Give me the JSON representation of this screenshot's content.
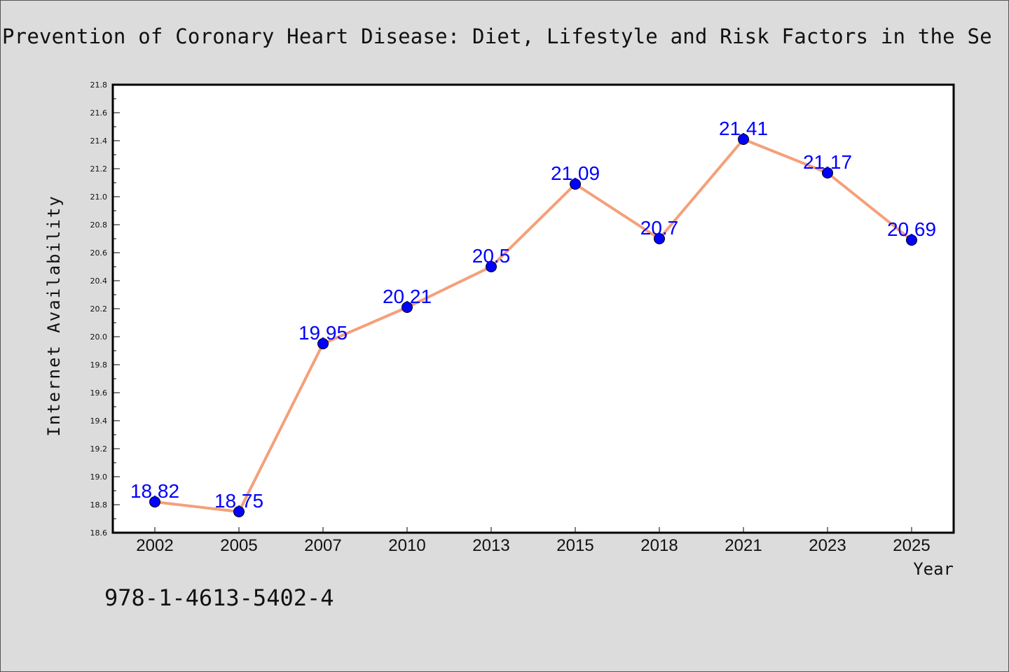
{
  "page": {
    "title": "Prevention of Coronary Heart Disease: Diet, Lifestyle and Risk Factors in the Se",
    "isbn": "978-1-4613-5402-4"
  },
  "colors": {
    "line": "#f4a07a",
    "marker": "#0000ff",
    "label": "#0000ff",
    "plot_bg": "#ffffff",
    "page_bg": "#dcdcdc"
  },
  "chart_data": {
    "type": "line",
    "title": "Prevention of Coronary Heart Disease: Diet, Lifestyle and Risk Factors in the Se",
    "xlabel": "Year",
    "ylabel": "Internet Availability",
    "categories": [
      "2002",
      "2005",
      "2007",
      "2010",
      "2013",
      "2015",
      "2018",
      "2021",
      "2023",
      "2025"
    ],
    "series": [
      {
        "values": [
          18.82,
          18.75,
          19.95,
          20.21,
          20.5,
          21.09,
          20.7,
          21.41,
          21.17,
          20.69
        ],
        "labels": [
          "18.82",
          "18.75",
          "19.95",
          "20.21",
          "20.5",
          "21.09",
          "20.7",
          "21.41",
          "21.17",
          "20.69"
        ]
      }
    ],
    "ylim": [
      18.6,
      21.8
    ],
    "yticks": [
      "18.6",
      "18.8",
      "19.0",
      "19.2",
      "19.4",
      "19.6",
      "19.8",
      "20.0",
      "20.2",
      "20.4",
      "20.6",
      "20.8",
      "21.0",
      "21.2",
      "21.4",
      "21.6",
      "21.8"
    ],
    "grid": false,
    "legend": "none"
  }
}
